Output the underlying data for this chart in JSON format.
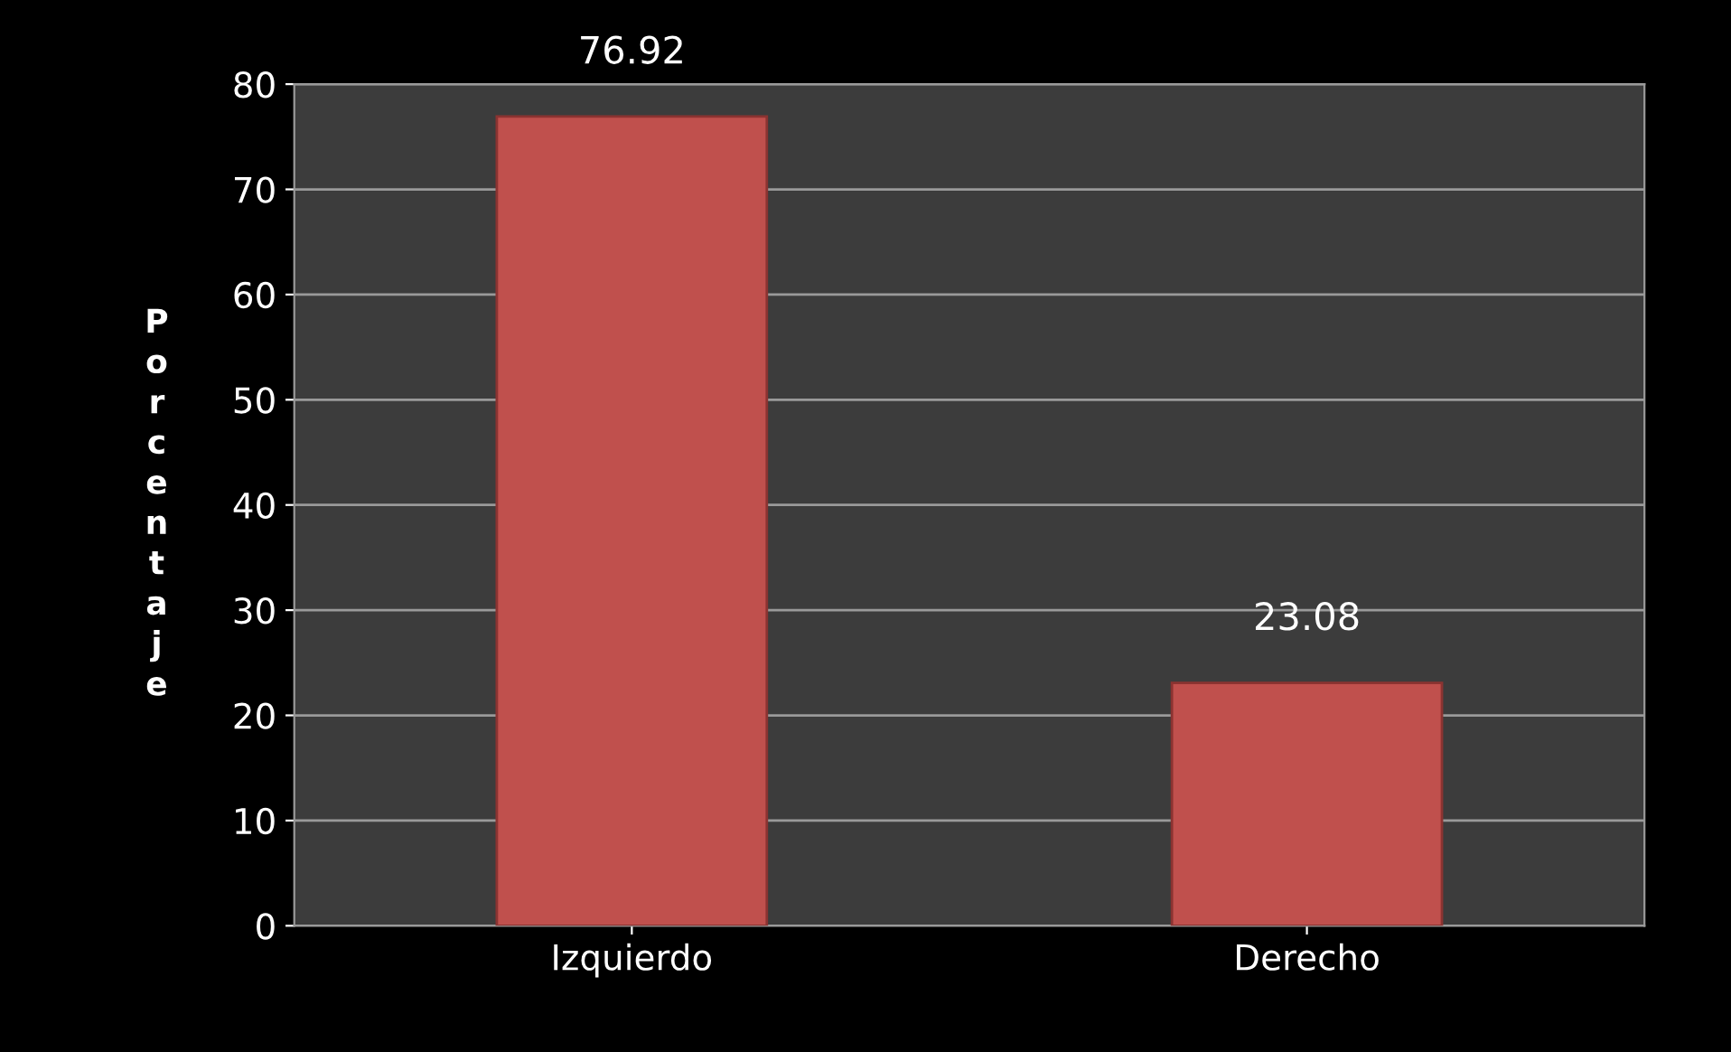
{
  "chart_data": {
    "type": "bar",
    "ylabel": "Porcentaje",
    "categories": [
      "Izquierdo",
      "Derecho"
    ],
    "values": [
      76.92,
      23.08
    ],
    "color": "#c0504d",
    "ylim": [
      0,
      80
    ],
    "yticks": [
      0,
      10,
      20,
      30,
      40,
      50,
      60,
      70,
      80
    ],
    "grid": "y",
    "data_labels": true
  }
}
